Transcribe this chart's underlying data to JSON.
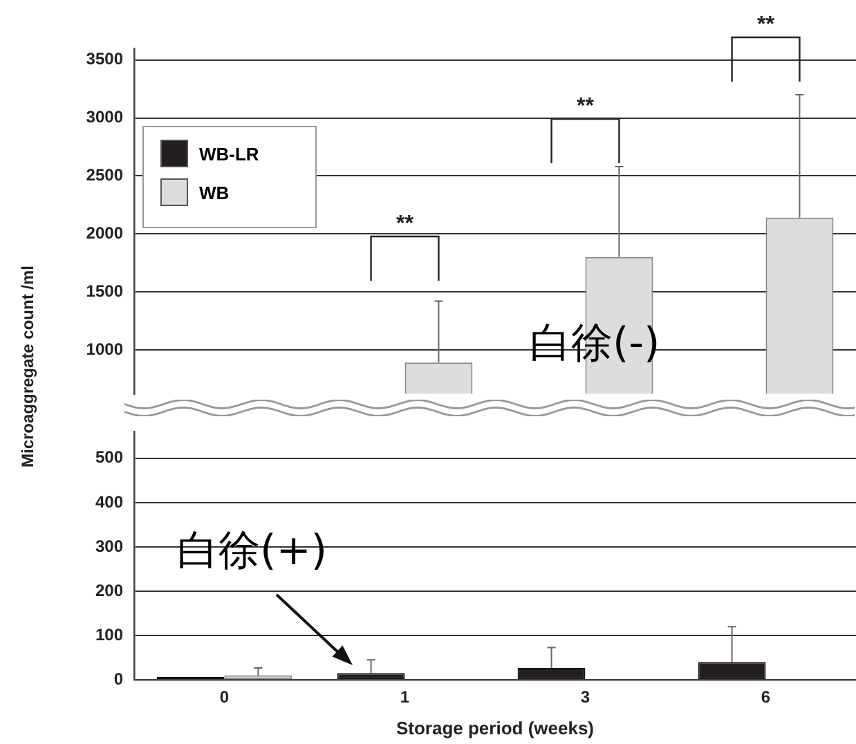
{
  "chart_data": [
    {
      "type": "bar",
      "categories": [
        "0",
        "1",
        "3",
        "6"
      ],
      "series": [
        {
          "name": "WB-LR",
          "color": "#231f20",
          "values": [
            null,
            null,
            null,
            null
          ]
        },
        {
          "name": "WB",
          "color": "#dcdddf",
          "values": [
            null,
            890,
            1800,
            2140
          ],
          "errors": [
            null,
            [
              890,
              1420
            ],
            [
              1800,
              2580
            ],
            [
              2140,
              3200
            ]
          ]
        }
      ],
      "ylim": [
        620,
        3600
      ],
      "yticks": [
        1000,
        1500,
        2000,
        2500,
        3000,
        3500
      ],
      "grid": "y",
      "legend": "top left",
      "tick_labels": "y",
      "annotations": [
        "**",
        "**",
        "**",
        "白徐(-)"
      ]
    },
    {
      "type": "bar",
      "categories": [
        "0",
        "1",
        "3",
        "6"
      ],
      "xlabel": "Storage period (weeks)",
      "ylabel": "Microaggregate count /ml",
      "series": [
        {
          "color": "#231f20",
          "values": [
            7,
            15,
            27,
            40
          ],
          "errors": [
            null,
            [
              15,
              45
            ],
            [
              27,
              73
            ],
            [
              40,
              120
            ]
          ]
        },
        {
          "color": "#dcdddf",
          "values": [
            10,
            null,
            null,
            null
          ],
          "errors": [
            [
              10,
              27
            ],
            null,
            null,
            null
          ]
        }
      ],
      "ylim": [
        0,
        560
      ],
      "yticks": [
        0,
        100,
        200,
        300,
        400,
        500
      ],
      "grid": "y",
      "annotations": [
        "白徐(+)"
      ]
    }
  ]
}
